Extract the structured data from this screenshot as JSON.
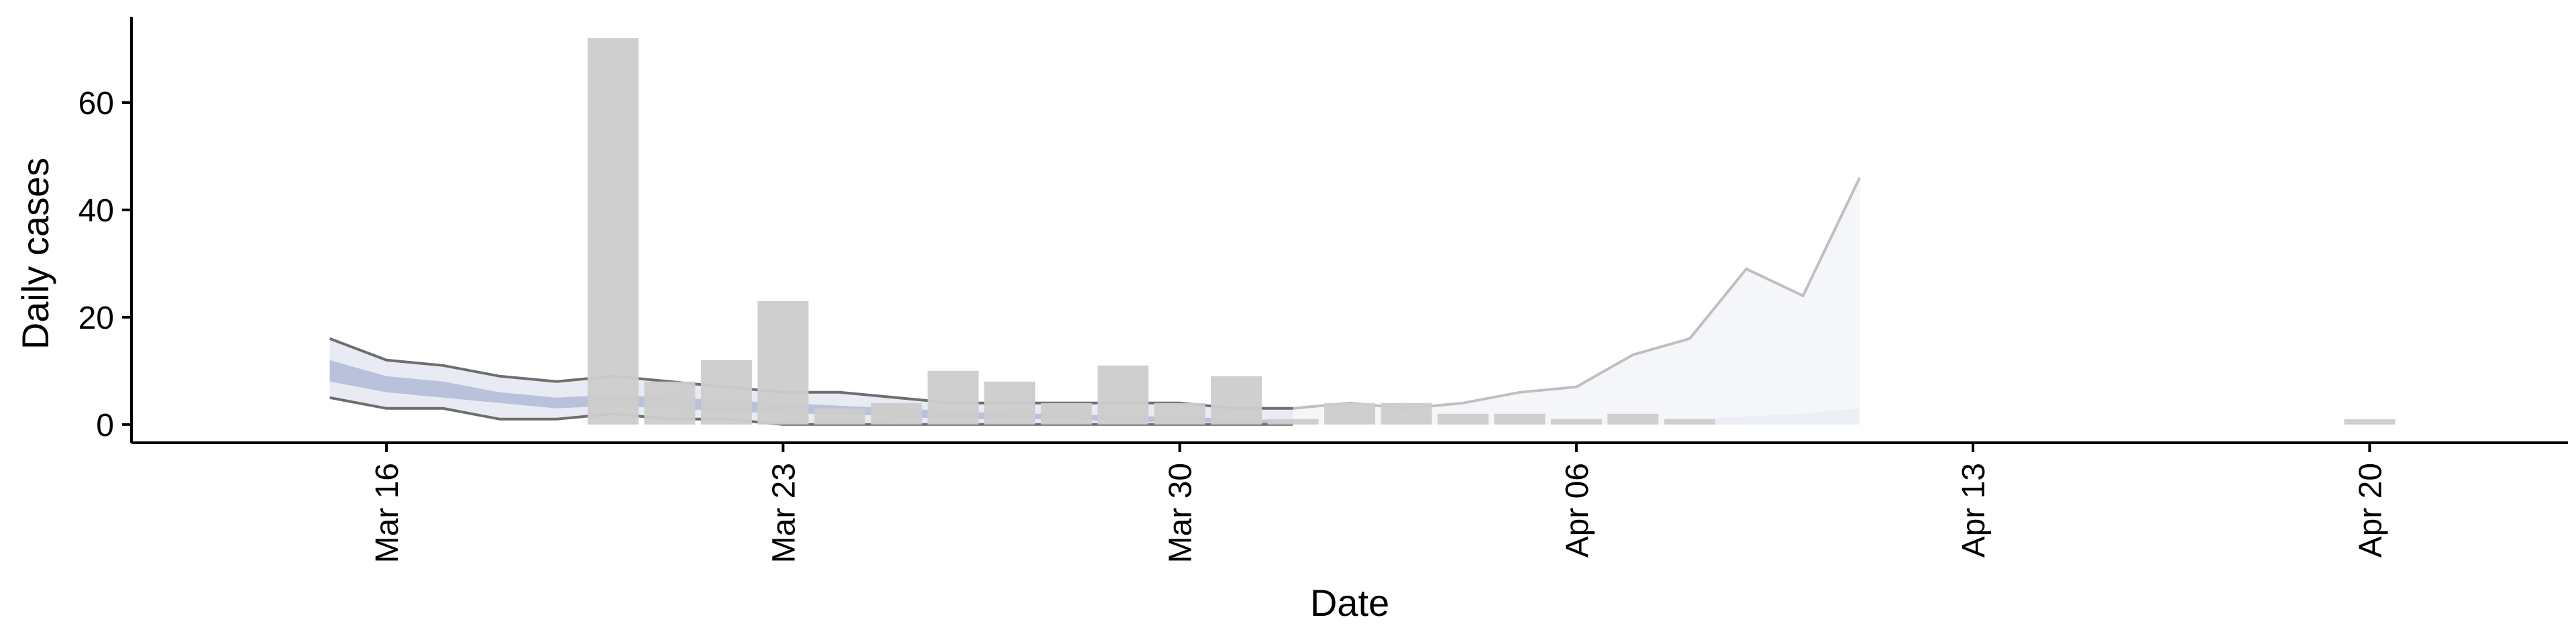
{
  "chart_data": {
    "type": "bar",
    "title": "",
    "xlabel": "Date",
    "ylabel": "Daily cases",
    "x_axis": {
      "type": "date",
      "range": [
        "2020-03-11T12:00",
        "2020-04-23T12:00"
      ],
      "ticks": [
        {
          "date": "2020-03-16",
          "label": "Mar 16"
        },
        {
          "date": "2020-03-23",
          "label": "Mar 23"
        },
        {
          "date": "2020-03-30",
          "label": "Mar 30"
        },
        {
          "date": "2020-04-06",
          "label": "Apr 06"
        },
        {
          "date": "2020-04-13",
          "label": "Apr 13"
        },
        {
          "date": "2020-04-20",
          "label": "Apr 20"
        }
      ]
    },
    "y_axis": {
      "range": [
        -3.4,
        76
      ],
      "ticks": [
        {
          "value": 0,
          "label": "0"
        },
        {
          "value": 20,
          "label": "20"
        },
        {
          "value": 40,
          "label": "40"
        },
        {
          "value": 60,
          "label": "60"
        }
      ]
    },
    "grid": false,
    "legend": "none",
    "colors": {
      "bars": "#cccccc",
      "interval_outer": "#e8ebf4",
      "interval_inner": "#b9c2da",
      "outer_line": "#6e6e6e",
      "forecast_fill": "#f5f6f9",
      "forecast_line": "#bfbfbf",
      "axis": "#000000"
    },
    "observed_cases": [
      {
        "date": "2020-03-20",
        "cases": 72
      },
      {
        "date": "2020-03-21",
        "cases": 8
      },
      {
        "date": "2020-03-22",
        "cases": 12
      },
      {
        "date": "2020-03-23",
        "cases": 23
      },
      {
        "date": "2020-03-24",
        "cases": 3
      },
      {
        "date": "2020-03-25",
        "cases": 4
      },
      {
        "date": "2020-03-26",
        "cases": 10
      },
      {
        "date": "2020-03-27",
        "cases": 8
      },
      {
        "date": "2020-03-28",
        "cases": 4
      },
      {
        "date": "2020-03-29",
        "cases": 11
      },
      {
        "date": "2020-03-30",
        "cases": 4
      },
      {
        "date": "2020-03-31",
        "cases": 9
      },
      {
        "date": "2020-04-01",
        "cases": 1
      },
      {
        "date": "2020-04-02",
        "cases": 4
      },
      {
        "date": "2020-04-03",
        "cases": 4
      },
      {
        "date": "2020-04-04",
        "cases": 2
      },
      {
        "date": "2020-04-05",
        "cases": 2
      },
      {
        "date": "2020-04-06",
        "cases": 1
      },
      {
        "date": "2020-04-07",
        "cases": 2
      },
      {
        "date": "2020-04-08",
        "cases": 1
      },
      {
        "date": "2020-04-20",
        "cases": 1
      }
    ],
    "estimate_band": [
      {
        "date": "2020-03-15",
        "lower": 5,
        "upper": 16,
        "inner_lower": 8,
        "inner_upper": 12
      },
      {
        "date": "2020-03-16",
        "lower": 3,
        "upper": 12,
        "inner_lower": 6,
        "inner_upper": 9
      },
      {
        "date": "2020-03-17",
        "lower": 3,
        "upper": 11,
        "inner_lower": 5,
        "inner_upper": 8
      },
      {
        "date": "2020-03-18",
        "lower": 1,
        "upper": 9,
        "inner_lower": 4,
        "inner_upper": 6
      },
      {
        "date": "2020-03-19",
        "lower": 1,
        "upper": 8,
        "inner_lower": 3,
        "inner_upper": 5
      },
      {
        "date": "2020-03-20",
        "lower": 2,
        "upper": 9,
        "inner_lower": 3.5,
        "inner_upper": 5.5
      },
      {
        "date": "2020-03-21",
        "lower": 1,
        "upper": 8,
        "inner_lower": 3,
        "inner_upper": 5
      },
      {
        "date": "2020-03-22",
        "lower": 1,
        "upper": 7,
        "inner_lower": 2.5,
        "inner_upper": 4.5
      },
      {
        "date": "2020-03-23",
        "lower": 0,
        "upper": 6,
        "inner_lower": 2,
        "inner_upper": 4
      },
      {
        "date": "2020-03-24",
        "lower": 0,
        "upper": 6,
        "inner_lower": 2,
        "inner_upper": 3.5
      },
      {
        "date": "2020-03-25",
        "lower": 0,
        "upper": 5,
        "inner_lower": 1.5,
        "inner_upper": 3
      },
      {
        "date": "2020-03-26",
        "lower": 0,
        "upper": 4,
        "inner_lower": 1,
        "inner_upper": 2.5
      },
      {
        "date": "2020-03-27",
        "lower": 0,
        "upper": 4,
        "inner_lower": 1,
        "inner_upper": 2
      },
      {
        "date": "2020-03-28",
        "lower": 0,
        "upper": 4,
        "inner_lower": 1,
        "inner_upper": 2
      },
      {
        "date": "2020-03-29",
        "lower": 0,
        "upper": 4,
        "inner_lower": 0.5,
        "inner_upper": 1.5
      },
      {
        "date": "2020-03-30",
        "lower": 0,
        "upper": 4,
        "inner_lower": 0.5,
        "inner_upper": 1.5
      },
      {
        "date": "2020-03-31",
        "lower": 0,
        "upper": 3,
        "inner_lower": 0.3,
        "inner_upper": 1
      },
      {
        "date": "2020-04-01",
        "lower": 0,
        "upper": 3,
        "inner_lower": 0.2,
        "inner_upper": 0.8
      }
    ],
    "forecast_band": [
      {
        "date": "2020-04-01",
        "lower": 0,
        "upper": 3
      },
      {
        "date": "2020-04-02",
        "lower": 0,
        "upper": 4
      },
      {
        "date": "2020-04-03",
        "lower": 0,
        "upper": 3
      },
      {
        "date": "2020-04-04",
        "lower": 0,
        "upper": 4
      },
      {
        "date": "2020-04-05",
        "lower": 0,
        "upper": 6
      },
      {
        "date": "2020-04-06",
        "lower": 0,
        "upper": 7
      },
      {
        "date": "2020-04-07",
        "lower": 0,
        "upper": 13
      },
      {
        "date": "2020-04-08",
        "lower": 0,
        "upper": 16
      },
      {
        "date": "2020-04-09",
        "lower": 0,
        "upper": 29
      },
      {
        "date": "2020-04-10",
        "lower": 0,
        "upper": 24
      },
      {
        "date": "2020-04-11",
        "lower": 0,
        "upper": 46
      }
    ],
    "forecast_inner_band": [
      {
        "date": "2020-04-08",
        "lower": 0,
        "upper": 1
      },
      {
        "date": "2020-04-09",
        "lower": 0,
        "upper": 1.5
      },
      {
        "date": "2020-04-10",
        "lower": 0,
        "upper": 2
      },
      {
        "date": "2020-04-11",
        "lower": 0,
        "upper": 3
      }
    ]
  }
}
